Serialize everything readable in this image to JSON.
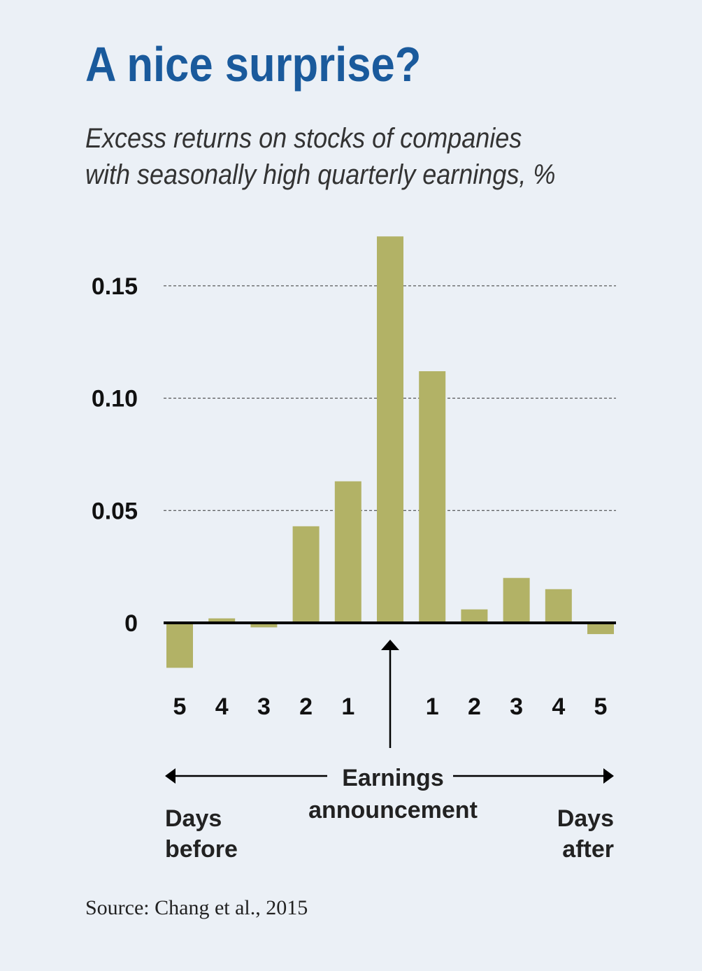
{
  "title": "A nice surprise?",
  "subtitle_line1": "Excess returns on stocks of companies",
  "subtitle_line2": "with seasonally high quarterly earnings, %",
  "source": "Source: Chang et al., 2015",
  "colors": {
    "background": "#ebf0f6",
    "title": "#1a5a9c",
    "bar": "#b2b266",
    "axis": "#000000"
  },
  "chart_data": {
    "type": "bar",
    "categories": [
      "5",
      "4",
      "3",
      "2",
      "1",
      "",
      "1",
      "2",
      "3",
      "4",
      "5"
    ],
    "values": [
      -0.02,
      0.002,
      -0.002,
      0.043,
      0.063,
      0.172,
      0.112,
      0.006,
      0.02,
      0.015,
      -0.005
    ],
    "ylim": [
      -0.03,
      0.18
    ],
    "yticks": [
      "0",
      "0.05",
      "0.10",
      "0.15"
    ],
    "ytick_values": [
      0,
      0.05,
      0.1,
      0.15
    ],
    "grid": "dashed horizontal",
    "annotations": {
      "center": "Earnings announcement",
      "center_line1": "Earnings",
      "center_line2": "announcement",
      "left_line1": "Days",
      "left_line2": "before",
      "right_line1": "Days",
      "right_line2": "after"
    }
  }
}
